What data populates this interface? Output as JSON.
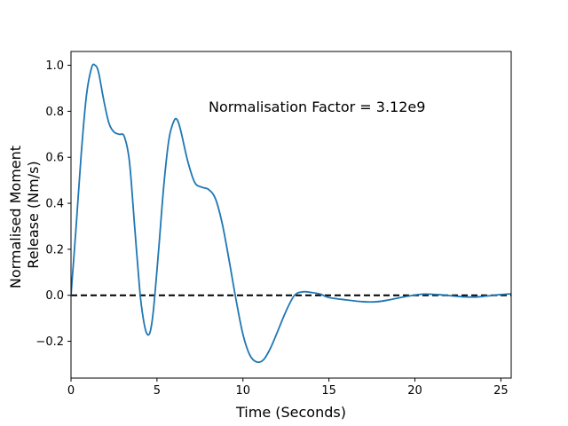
{
  "chart_data": {
    "type": "line",
    "title": "",
    "xlabel": "Time (Seconds)",
    "ylabel": "Normalised Moment Release (Nm/s)",
    "ylabel_lines": [
      "Normalised Moment",
      "Release (Nm/s)"
    ],
    "xlim": [
      0,
      25.6
    ],
    "ylim": [
      -0.36,
      1.06
    ],
    "xticks": [
      0,
      5,
      10,
      15,
      20,
      25
    ],
    "yticks": [
      -0.2,
      0.0,
      0.2,
      0.4,
      0.6,
      0.8,
      1.0
    ],
    "ytick_labels": [
      "−0.2",
      "0.0",
      "0.2",
      "0.4",
      "0.6",
      "0.8",
      "1.0"
    ],
    "grid": false,
    "annotation": "Normalisation Factor = 3.12e9",
    "series": [
      {
        "color": "#1f77b4",
        "x": [
          0,
          0.3,
          0.6,
          0.9,
          1.2,
          1.4,
          1.6,
          1.9,
          2.2,
          2.5,
          2.8,
          3.1,
          3.4,
          3.7,
          4.0,
          4.2,
          4.4,
          4.6,
          4.8,
          5.1,
          5.4,
          5.7,
          6.0,
          6.2,
          6.4,
          6.8,
          7.2,
          7.6,
          8.0,
          8.4,
          8.8,
          9.2,
          9.6,
          10.0,
          10.4,
          10.8,
          11.2,
          11.6,
          12.0,
          12.5,
          13.0,
          13.5,
          14.0,
          14.5,
          15.0,
          16.0,
          17.0,
          17.8,
          18.5,
          19.5,
          20.5,
          21.5,
          22.5,
          23.4,
          24.2,
          25.0,
          25.6
        ],
        "y": [
          0.0,
          0.3,
          0.62,
          0.87,
          0.99,
          1.0,
          0.97,
          0.85,
          0.75,
          0.71,
          0.7,
          0.69,
          0.58,
          0.3,
          0.02,
          -0.1,
          -0.165,
          -0.16,
          -0.06,
          0.2,
          0.48,
          0.68,
          0.76,
          0.76,
          0.71,
          0.58,
          0.49,
          0.47,
          0.46,
          0.42,
          0.31,
          0.15,
          -0.02,
          -0.17,
          -0.26,
          -0.29,
          -0.28,
          -0.23,
          -0.16,
          -0.07,
          0.0,
          0.015,
          0.012,
          0.005,
          -0.01,
          -0.02,
          -0.028,
          -0.028,
          -0.02,
          -0.005,
          0.005,
          0.002,
          -0.005,
          -0.008,
          -0.003,
          0.003,
          0.006
        ]
      }
    ],
    "reference_lines": [
      {
        "orientation": "horizontal",
        "y": 0.0,
        "style": "dashed",
        "color": "#000000"
      }
    ]
  }
}
